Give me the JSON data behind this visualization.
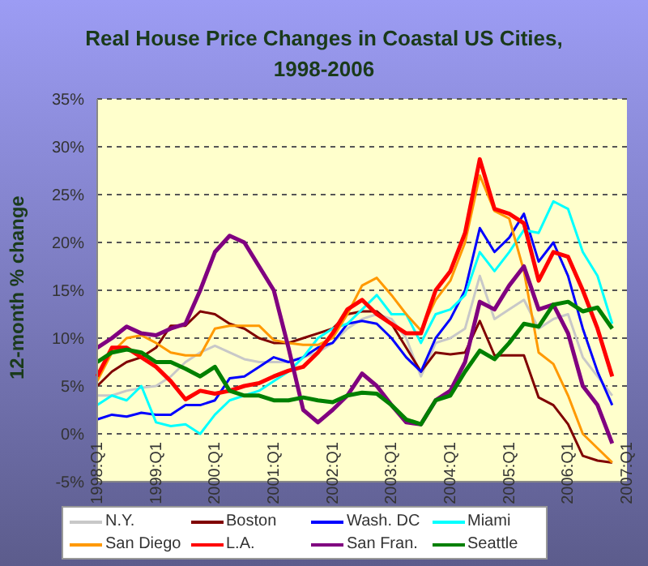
{
  "chart_data": {
    "type": "line",
    "title": "Real House Price Changes in Coastal US Cities, 1998-2006",
    "ylabel": "12-month % change",
    "categories": [
      "1998:Q1",
      null,
      null,
      null,
      "1999:Q1",
      null,
      null,
      null,
      "2000:Q1",
      null,
      null,
      null,
      "2001:Q1",
      null,
      null,
      null,
      "2002:Q1",
      null,
      null,
      null,
      "2003:Q1",
      null,
      null,
      null,
      "2004:Q1",
      null,
      null,
      null,
      "2005:Q1",
      null,
      null,
      null,
      "2006:Q1",
      null,
      null,
      null,
      "2007:Q1"
    ],
    "ylim": [
      -5,
      35
    ],
    "yticks": [
      {
        "value": -5,
        "label": "-5%"
      },
      {
        "value": 0,
        "label": "0%"
      },
      {
        "value": 5,
        "label": "5%"
      },
      {
        "value": 10,
        "label": "10%"
      },
      {
        "value": 15,
        "label": "15%"
      },
      {
        "value": 20,
        "label": "20%"
      },
      {
        "value": 25,
        "label": "25%"
      },
      {
        "value": 30,
        "label": "30%"
      },
      {
        "value": 35,
        "label": "35%"
      }
    ],
    "grid": "y",
    "legend": "bottom",
    "marker": "none",
    "line_style": "solid",
    "series": [
      {
        "name": "N.Y.",
        "color": "#c8c8c8",
        "values": [
          4,
          4,
          4.5,
          4.8,
          5,
          6,
          7.5,
          8.5,
          9.2,
          8.5,
          7.8,
          7.5,
          7.5,
          7.5,
          8,
          8.5,
          9.5,
          11,
          12,
          12.5,
          12,
          10,
          6,
          9.5,
          10,
          11,
          16.5,
          12,
          13,
          14,
          11,
          12,
          12.5,
          8,
          6,
          4,
          null
        ]
      },
      {
        "name": "Boston",
        "color": "#800000",
        "values": [
          5,
          6.5,
          7.5,
          8,
          9,
          11.3,
          11.3,
          12.8,
          12.5,
          11.5,
          11,
          10,
          9.5,
          9.5,
          10,
          10.5,
          11,
          12.5,
          12.8,
          12.8,
          11.5,
          9,
          6.5,
          8.5,
          8.3,
          8.5,
          11.8,
          8.2,
          8.2,
          8.2,
          3.8,
          3,
          1,
          -2.3,
          -2.8,
          -3,
          null
        ]
      },
      {
        "name": "Wash. DC",
        "color": "#0000ff",
        "values": [
          1.5,
          2,
          1.8,
          2.2,
          2,
          2,
          3,
          3,
          3.5,
          5.8,
          6,
          7,
          8,
          7.5,
          8,
          9,
          9.5,
          11.5,
          11.8,
          11.5,
          10,
          8,
          6.5,
          10,
          12,
          15,
          21.5,
          19,
          20.5,
          23,
          18,
          20,
          16.5,
          11,
          6.5,
          3,
          null
        ]
      },
      {
        "name": "Miami",
        "color": "#00ffff",
        "values": [
          3,
          4,
          3.5,
          5,
          1.2,
          0.8,
          1,
          0,
          2,
          3.5,
          4,
          4.5,
          5.5,
          6.5,
          8,
          10,
          11,
          11.5,
          13,
          14.5,
          12.5,
          12.5,
          9.5,
          12.5,
          13,
          14.5,
          19,
          17,
          19,
          21.3,
          21,
          24.3,
          23.5,
          19,
          16.5,
          11.5,
          null
        ]
      },
      {
        "name": "San Diego",
        "color": "#ff9900",
        "values": [
          5.5,
          8.5,
          10,
          10.3,
          9.5,
          8.5,
          8.2,
          8.2,
          11,
          11.3,
          11.3,
          11.3,
          9.8,
          9.5,
          9.3,
          9.3,
          10,
          12.5,
          15.5,
          16.3,
          14.5,
          12.5,
          10.8,
          14,
          16,
          20,
          27,
          23.3,
          22.5,
          17,
          8.5,
          7.3,
          4,
          0,
          -1.5,
          -3,
          null
        ]
      },
      {
        "name": "L.A.",
        "color": "#ff0000",
        "values": [
          6,
          9,
          9,
          8,
          7,
          5.5,
          3.6,
          4.5,
          4.2,
          4.5,
          5,
          5.3,
          6,
          6.6,
          7,
          8.5,
          10.5,
          13,
          14,
          12.5,
          11.5,
          10.5,
          10.5,
          15,
          17,
          21,
          28.7,
          23.5,
          23,
          22,
          16,
          19,
          18.5,
          15,
          11,
          6,
          null
        ]
      },
      {
        "name": "San Fran.",
        "color": "#800080",
        "values": [
          9,
          10,
          11.2,
          10.5,
          10.3,
          11,
          11.5,
          15,
          19,
          20.7,
          20,
          17.5,
          15,
          9,
          2.5,
          1.2,
          2.5,
          4,
          6.3,
          5,
          3,
          1.2,
          1,
          3.5,
          4.5,
          7.5,
          13.8,
          13,
          15.5,
          17.5,
          13,
          13.5,
          10.5,
          5,
          3,
          -1,
          null
        ]
      },
      {
        "name": "Seattle",
        "color": "#008000",
        "values": [
          7.5,
          8.5,
          8.8,
          8.5,
          7.5,
          7.5,
          6.8,
          6,
          7,
          4.5,
          4,
          4,
          3.5,
          3.5,
          3.8,
          3.5,
          3.3,
          4,
          4.3,
          4.2,
          3,
          1.5,
          1,
          3.5,
          4,
          6.5,
          8.7,
          7.8,
          9.5,
          11.5,
          11.2,
          13.5,
          13.8,
          12.8,
          13.2,
          11,
          null
        ]
      }
    ]
  }
}
